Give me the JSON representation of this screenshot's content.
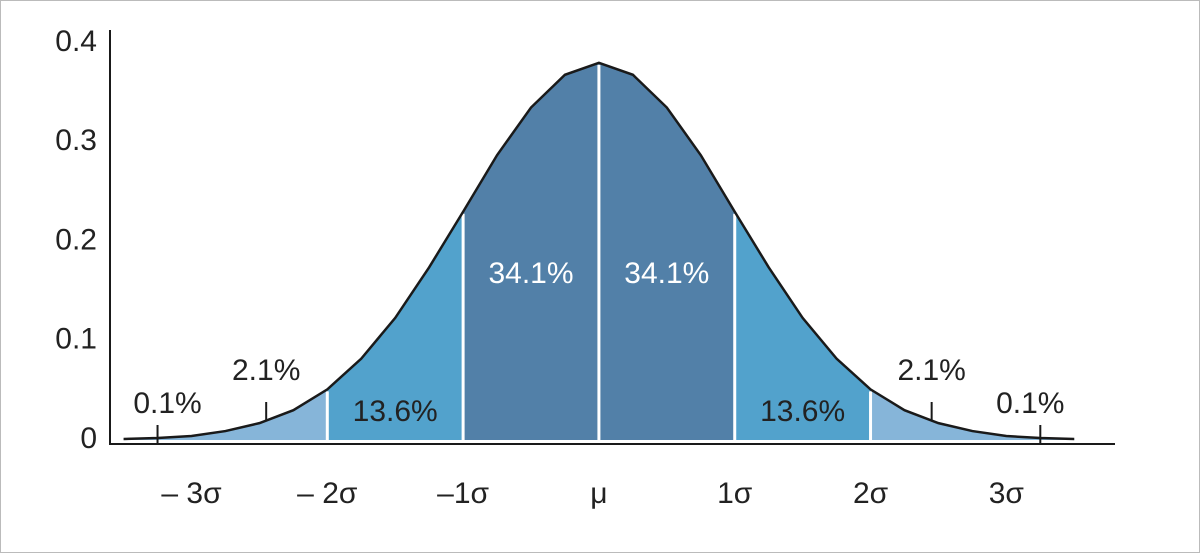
{
  "chart_data": {
    "type": "density",
    "x": [
      -3.5,
      -3.25,
      -3,
      -2.75,
      -2.5,
      -2.25,
      -2,
      -1.75,
      -1.5,
      -1.25,
      -1,
      -0.75,
      -0.5,
      -0.25,
      0,
      0.25,
      0.5,
      0.75,
      1,
      1.25,
      1.5,
      1.75,
      2,
      2.25,
      2.5,
      2.75,
      3,
      3.25,
      3.5
    ],
    "y": [
      0.001,
      0.002,
      0.004,
      0.009,
      0.017,
      0.03,
      0.051,
      0.082,
      0.123,
      0.174,
      0.23,
      0.287,
      0.335,
      0.368,
      0.38,
      0.368,
      0.335,
      0.287,
      0.23,
      0.174,
      0.123,
      0.082,
      0.051,
      0.03,
      0.017,
      0.009,
      0.004,
      0.002,
      0.001
    ],
    "color": "#1a1a1a",
    "dividers": [
      -2,
      -1,
      0,
      1,
      2
    ],
    "band_colors": [
      "#86b5d9",
      "#52a2cc",
      "#5280a8",
      "#5280a8",
      "#52a2cc",
      "#86b5d9"
    ],
    "annotations": {
      "values": [
        0.1,
        2.1,
        13.6,
        34.1,
        34.1,
        13.6,
        2.1,
        0.1
      ],
      "value_labels": [
        "0.1%",
        "2.1%",
        "13.6%",
        "34.1%",
        "34.1%",
        "13.6%",
        "2.1%",
        "0.1%"
      ]
    },
    "xlim": [
      -3.6,
      3.8
    ],
    "xticks": [
      {
        "value": -3,
        "label": "– 3σ"
      },
      {
        "value": -2,
        "label": "– 2σ"
      },
      {
        "value": -1,
        "label": "–1σ"
      },
      {
        "value": 0,
        "label": "μ"
      },
      {
        "value": 1,
        "label": "1σ"
      },
      {
        "value": 2,
        "label": "2σ"
      },
      {
        "value": 3,
        "label": "3σ"
      }
    ],
    "ylim": [
      0,
      0.4
    ],
    "yticks": [
      0,
      0.1,
      0.2,
      0.3,
      0.4
    ]
  }
}
